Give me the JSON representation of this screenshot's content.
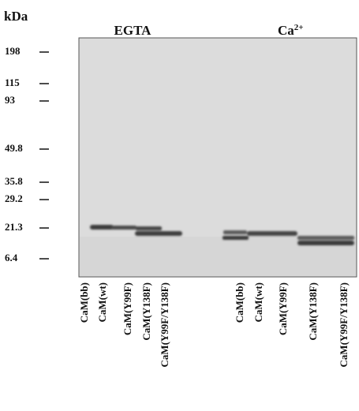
{
  "header": {
    "unit": "kDa",
    "conditions": [
      {
        "label": "EGTA"
      },
      {
        "label": "Ca",
        "superscript": "2+"
      }
    ]
  },
  "markers": [
    "198",
    "115",
    "93",
    "49.8",
    "35.8",
    "29.2",
    "21.3",
    "6.4"
  ],
  "lanes": {
    "egta": [
      "CaM(bb)",
      "CaM(wt)",
      "CaM(Y99F)",
      "CaM(Y138F)",
      "CaM(Y99F/Y138F)"
    ],
    "calcium": [
      "CaM(bb)",
      "CaM(wt)",
      "CaM(Y99F)",
      "CaM(Y138F)",
      "CaM(Y99F/Y138F)"
    ]
  }
}
